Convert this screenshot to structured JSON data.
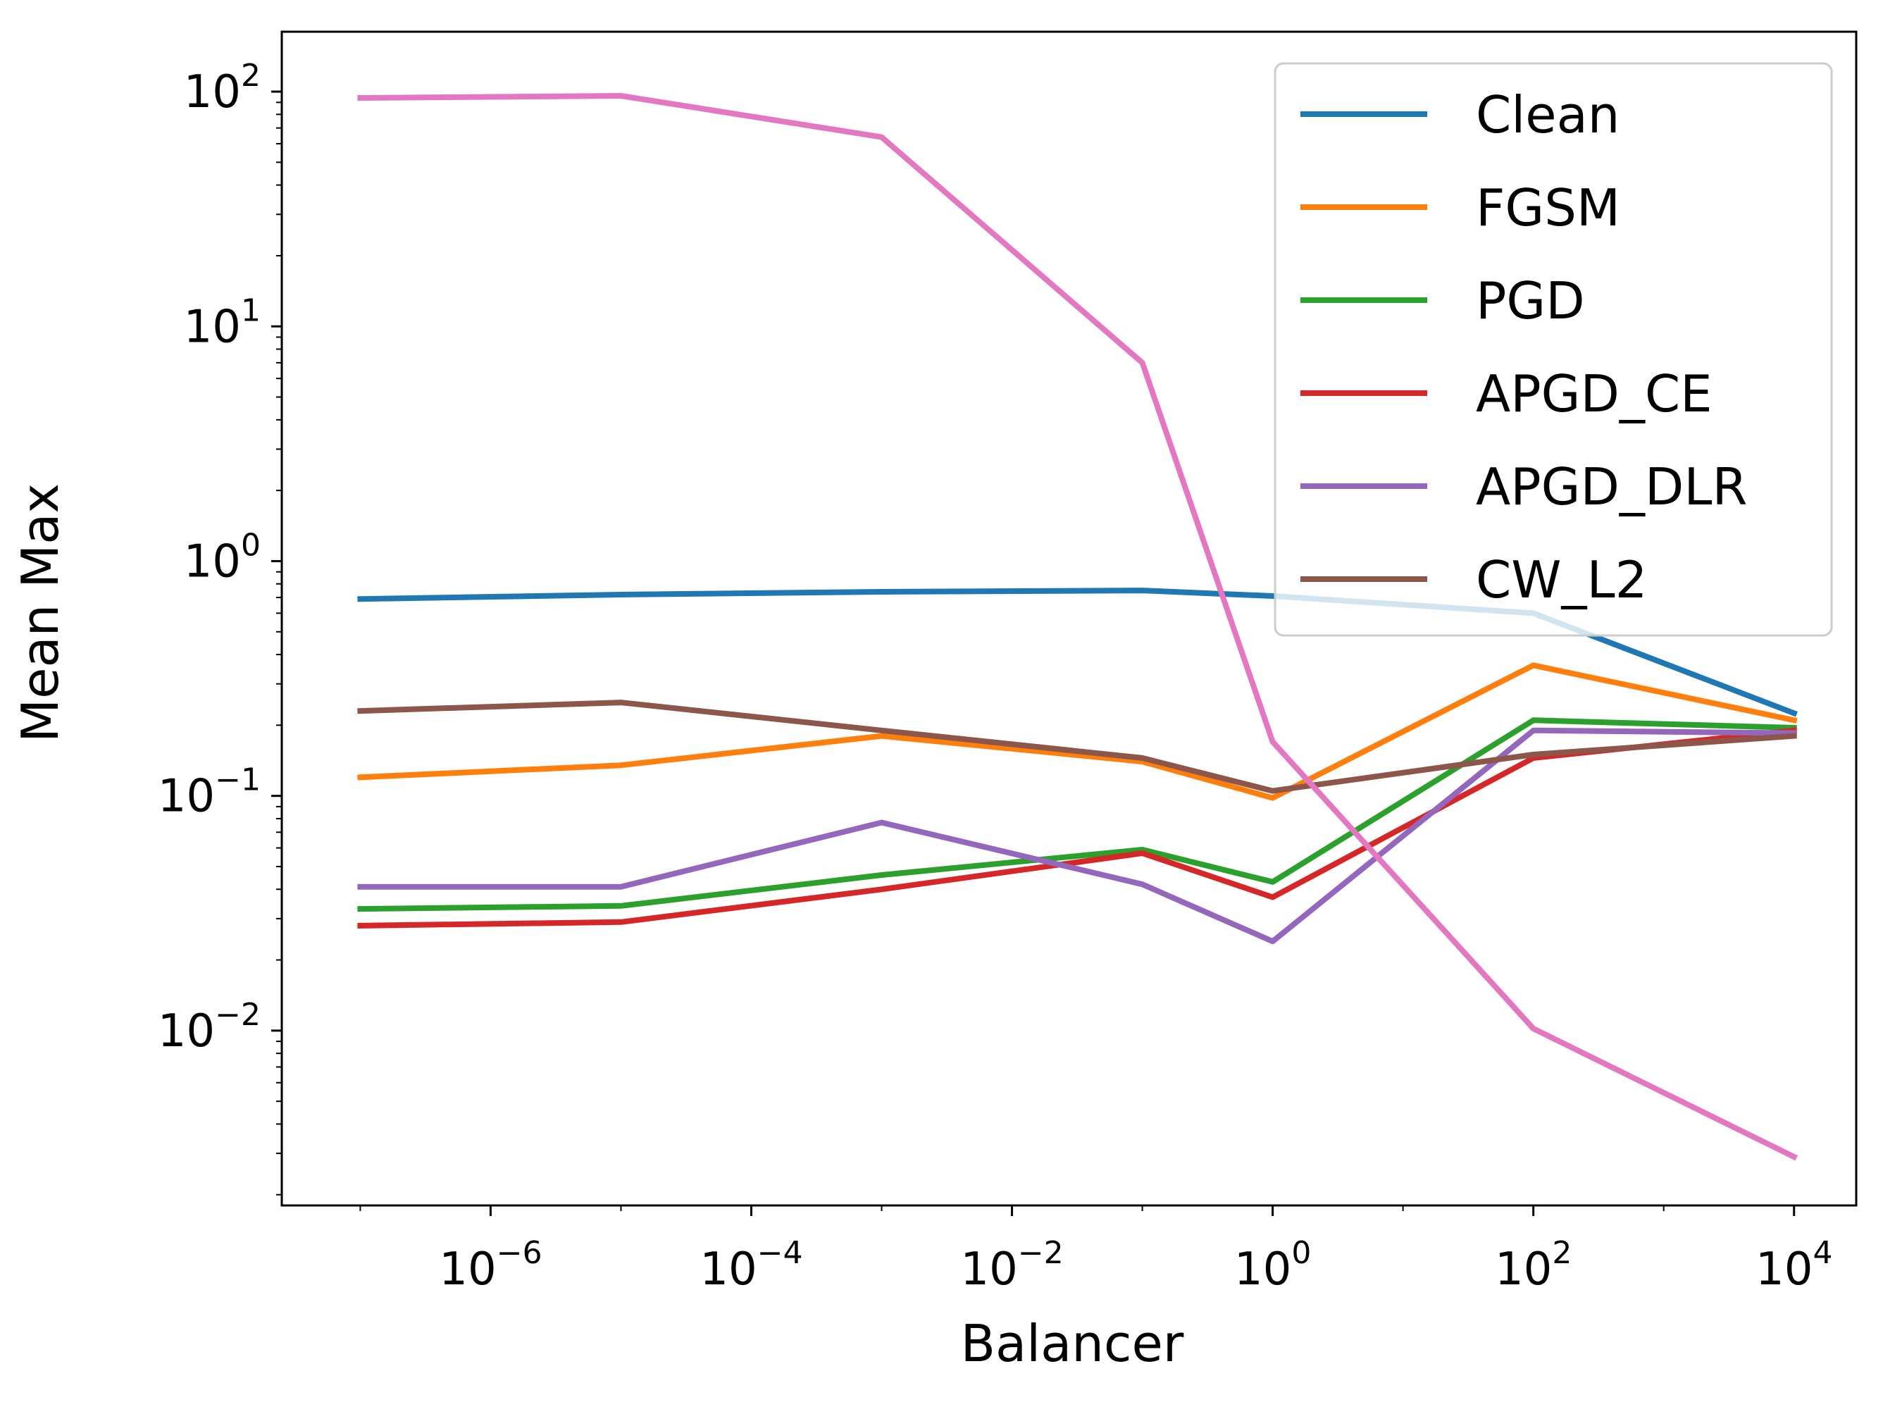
{
  "chart_data": {
    "type": "line",
    "title": "",
    "xlabel": "Balancer",
    "ylabel": "Mean Max",
    "xscale": "log",
    "yscale": "log",
    "xlim": [
      2.5e-08,
      30000.0
    ],
    "ylim": [
      0.0018,
      180
    ],
    "grid": false,
    "legend_position": "top-right",
    "x_ticks": [
      {
        "base": "10",
        "exp": "−6",
        "value": 1e-06
      },
      {
        "base": "10",
        "exp": "−4",
        "value": 0.0001
      },
      {
        "base": "10",
        "exp": "−2",
        "value": 0.01
      },
      {
        "base": "10",
        "exp": "0",
        "value": 1
      },
      {
        "base": "10",
        "exp": "2",
        "value": 100
      },
      {
        "base": "10",
        "exp": "4",
        "value": 10000
      }
    ],
    "y_ticks": [
      {
        "base": "10",
        "exp": "−2",
        "value": 0.01
      },
      {
        "base": "10",
        "exp": "−1",
        "value": 0.1
      },
      {
        "base": "10",
        "exp": "0",
        "value": 1
      },
      {
        "base": "10",
        "exp": "1",
        "value": 10
      },
      {
        "base": "10",
        "exp": "2",
        "value": 100
      }
    ],
    "x": [
      1e-07,
      1e-05,
      0.001,
      0.1,
      1,
      100,
      10000
    ],
    "series": [
      {
        "name": "Clean",
        "color": "#1f77b4",
        "values": [
          0.69,
          0.72,
          0.74,
          0.75,
          0.71,
          0.6,
          0.225
        ]
      },
      {
        "name": "FGSM",
        "color": "#ff7f0e",
        "values": [
          0.12,
          0.135,
          0.18,
          0.14,
          0.098,
          0.36,
          0.21
        ]
      },
      {
        "name": "PGD",
        "color": "#2ca02c",
        "values": [
          0.033,
          0.034,
          0.046,
          0.059,
          0.043,
          0.21,
          0.195
        ]
      },
      {
        "name": "APGD_CE",
        "color": "#d62728",
        "values": [
          0.028,
          0.029,
          0.04,
          0.057,
          0.037,
          0.145,
          0.19
        ]
      },
      {
        "name": "APGD_DLR",
        "color": "#9467bd",
        "values": [
          0.041,
          0.041,
          0.077,
          0.042,
          0.024,
          0.19,
          0.185
        ]
      },
      {
        "name": "CW_L2",
        "color": "#8c564b",
        "values": [
          0.23,
          0.25,
          0.19,
          0.145,
          0.105,
          0.15,
          0.18
        ]
      },
      {
        "name": "",
        "color": "#e377c2",
        "values": [
          94,
          96,
          64,
          7,
          0.17,
          0.0102,
          0.0029
        ]
      }
    ]
  }
}
